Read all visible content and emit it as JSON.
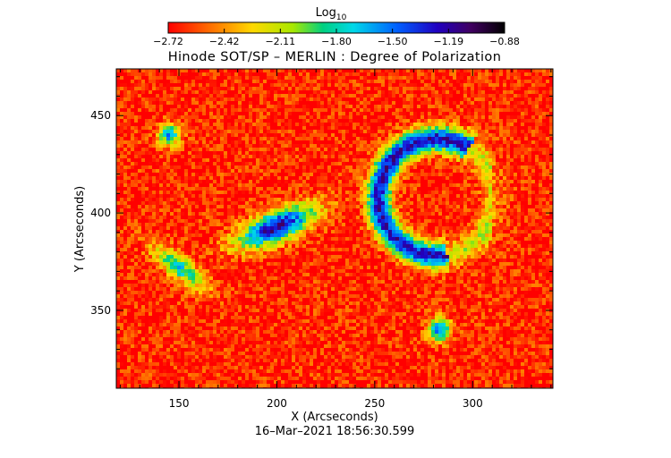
{
  "chart_data": {
    "type": "heatmap",
    "title": "Hinode SOT/SP – MERLIN : Degree of Polarization",
    "xlabel": "X (Arcseconds)",
    "ylabel": "Y (Arcseconds)",
    "timestamp": "16–Mar–2021 18:56:30.599",
    "xlim": [
      118,
      341
    ],
    "ylim": [
      310,
      474
    ],
    "x_ticks": [
      150,
      200,
      250,
      300
    ],
    "y_ticks": [
      350,
      400,
      450
    ],
    "colorbar": {
      "title": "Log",
      "title_subscript": "10",
      "ticks": [
        "−2.72",
        "−2.42",
        "−2.11",
        "−1.80",
        "−1.50",
        "−1.19",
        "−0.88"
      ],
      "range": [
        -2.72,
        -0.88
      ],
      "colormap": "rainbow: red → orange → yellow → green → cyan → blue → purple → black"
    },
    "background_level_log10": -2.65,
    "features": [
      {
        "name": "left polarization band (strong core near x=200, y=392)",
        "level_log10": -1.15
      },
      {
        "name": "right curved polarization arc (x≈255–300, y≈375–435)",
        "level_log10": -1.25
      },
      {
        "name": "small spot near x=145, y=440",
        "level_log10": -1.6
      },
      {
        "name": "small spot near x=283, y=340",
        "level_log10": -1.5
      }
    ]
  }
}
